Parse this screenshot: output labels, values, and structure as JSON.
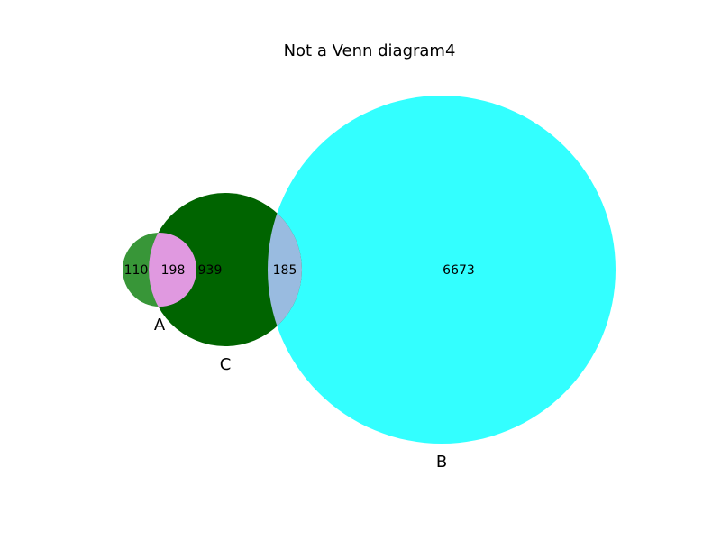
{
  "title": "Not a Venn diagram4",
  "sets": {
    "A": {
      "label": "A",
      "color": "#228b22"
    },
    "B": {
      "label": "B",
      "color": "#33ffff"
    },
    "C": {
      "label": "C",
      "color": "#006400"
    }
  },
  "regions": {
    "a_only": "110",
    "a_and_c": "198",
    "c_only": "939",
    "b_and_c": "185",
    "b_only": "6673"
  },
  "colors": {
    "a_and_c": "#e099e0",
    "b_and_c": "#99bbe0"
  }
}
